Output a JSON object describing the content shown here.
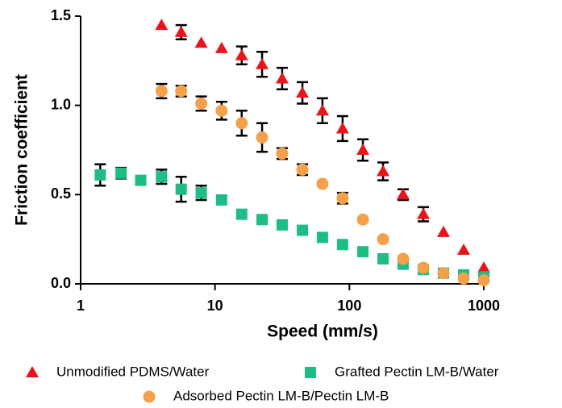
{
  "chart_data": {
    "type": "scatter",
    "xlabel": "Speed (mm/s)",
    "ylabel": "Friction coefficient",
    "xscale": "log",
    "xlim": [
      1,
      1000
    ],
    "xticks": [
      1,
      10,
      100,
      1000
    ],
    "ylim": [
      0,
      1.5
    ],
    "yticks": [
      {
        "value": 0,
        "label": "0.0"
      },
      0.5,
      {
        "value": 1,
        "label": "1.0"
      },
      1.5
    ],
    "series": [
      {
        "name": "Unmodified PDMS/Water",
        "color": "#e8161b",
        "marker": "triangle",
        "x": [
          4,
          5.6,
          7.9,
          11.2,
          15.8,
          22.4,
          31.6,
          44.7,
          63,
          89,
          126,
          178,
          251,
          355,
          501,
          708,
          1000
        ],
        "values": [
          1.45,
          1.41,
          1.35,
          1.32,
          1.28,
          1.23,
          1.15,
          1.07,
          0.97,
          0.87,
          0.75,
          0.63,
          0.5,
          0.39,
          0.29,
          0.19,
          0.09
        ],
        "errors": [
          0,
          0.04,
          0,
          0,
          0.05,
          0.07,
          0.06,
          0.06,
          0.07,
          0.07,
          0.06,
          0.05,
          0.03,
          0.04,
          0,
          0,
          0
        ]
      },
      {
        "name": "Grafted Pectin LM-B/Water",
        "color": "#1dbd83",
        "marker": "square",
        "x": [
          1.4,
          2,
          2.8,
          4,
          5.6,
          7.9,
          11.2,
          15.8,
          22.4,
          31.6,
          44.7,
          63,
          89,
          126,
          178,
          251,
          355,
          501,
          708,
          1000
        ],
        "values": [
          0.61,
          0.62,
          0.58,
          0.6,
          0.53,
          0.51,
          0.47,
          0.39,
          0.36,
          0.33,
          0.3,
          0.26,
          0.22,
          0.18,
          0.14,
          0.11,
          0.08,
          0.06,
          0.05,
          0.04
        ],
        "errors": [
          0.06,
          0.03,
          0,
          0.04,
          0.07,
          0.04,
          0,
          0,
          0,
          0,
          0,
          0,
          0,
          0,
          0,
          0,
          0,
          0,
          0,
          0
        ]
      },
      {
        "name": "Adsorbed Pectin LM-B/Pectin LM-B",
        "color": "#f5a04b",
        "marker": "circle",
        "x": [
          4,
          5.6,
          7.9,
          11.2,
          15.8,
          22.4,
          31.6,
          44.7,
          63,
          89,
          126,
          178,
          251,
          355,
          501,
          708,
          1000
        ],
        "values": [
          1.08,
          1.08,
          1.01,
          0.97,
          0.9,
          0.82,
          0.73,
          0.64,
          0.56,
          0.48,
          0.36,
          0.25,
          0.14,
          0.09,
          0.06,
          0.03,
          0.02
        ],
        "errors": [
          0.04,
          0.03,
          0.04,
          0.05,
          0.07,
          0.08,
          0.03,
          0.03,
          0,
          0.03,
          0,
          0,
          0,
          0,
          0,
          0,
          0
        ]
      }
    ]
  }
}
